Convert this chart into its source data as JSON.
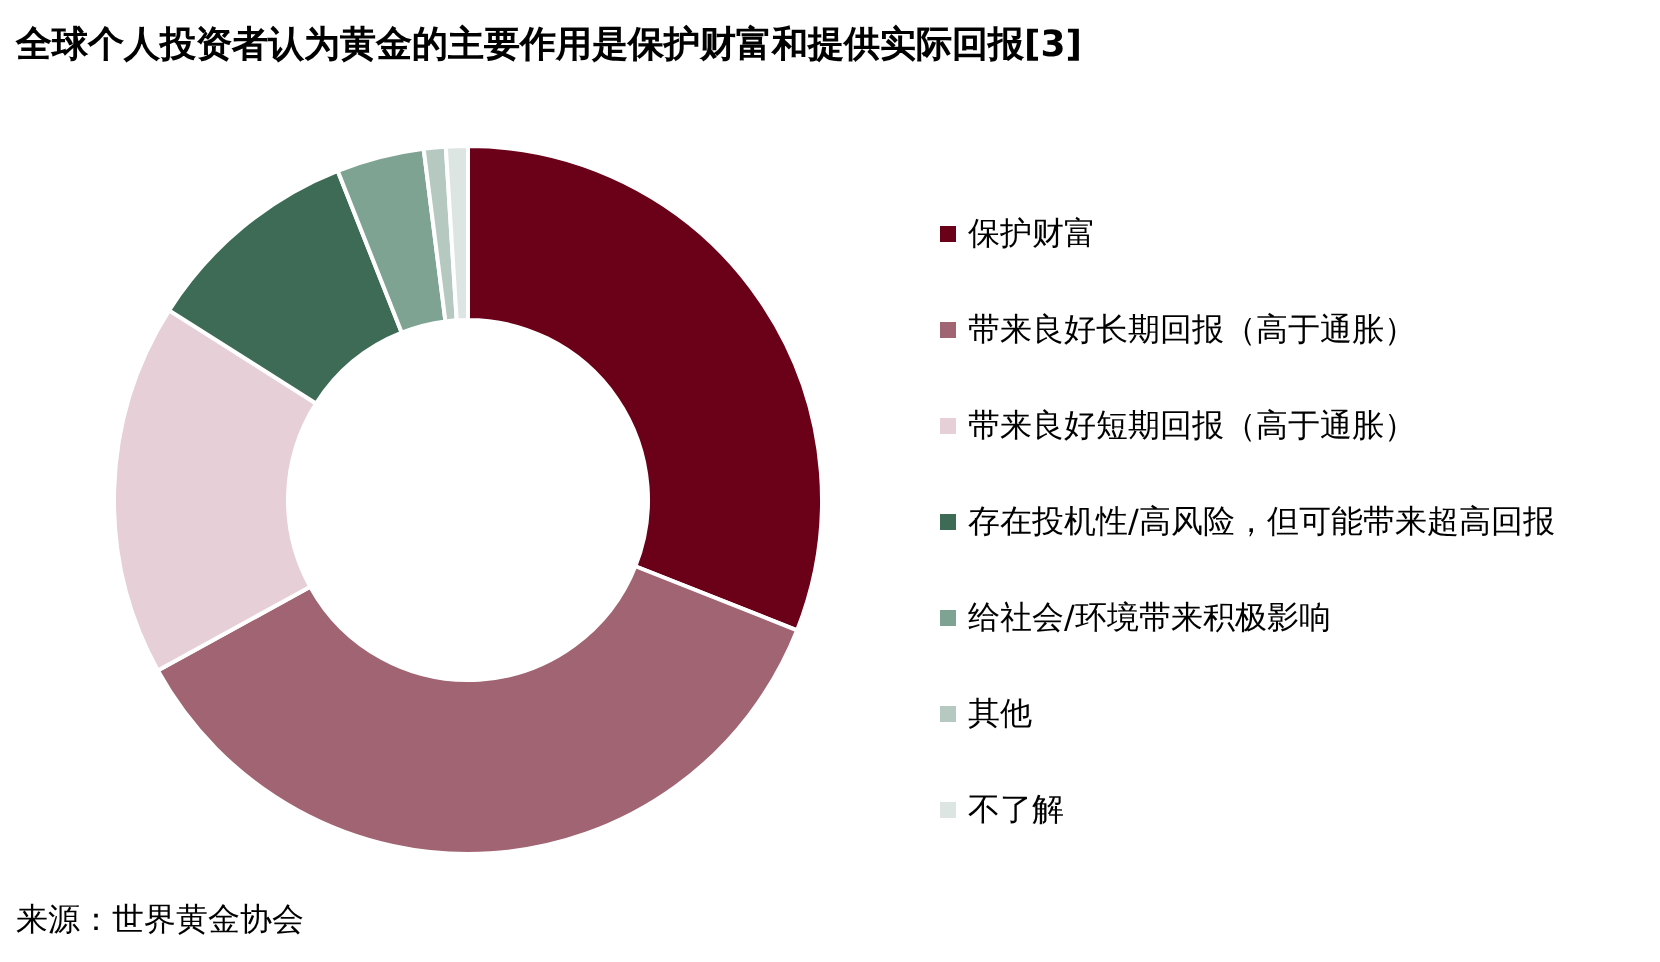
{
  "chart_data": {
    "type": "donut",
    "title": "全球个人投资者认为黄金的主要作用是保护财富和提供实际回报[3]",
    "categories": [
      "保护财富",
      "带来良好长期回报（高于通胀）",
      "带来良好短期回报（高于通胀）",
      "存在投机性/高风险，但可能带来超高回报",
      "给社会/环境带来积极影响",
      "其他",
      "不了解"
    ],
    "values": [
      31,
      36,
      17,
      10,
      4,
      1,
      1
    ],
    "colors": [
      "#6b0019",
      "#a06472",
      "#e6cfd6",
      "#3d6b55",
      "#7fa393",
      "#b5c9c1",
      "#dde5e3"
    ],
    "legend": "right",
    "annotations": [
      "来源：世界黄金协会"
    ]
  }
}
